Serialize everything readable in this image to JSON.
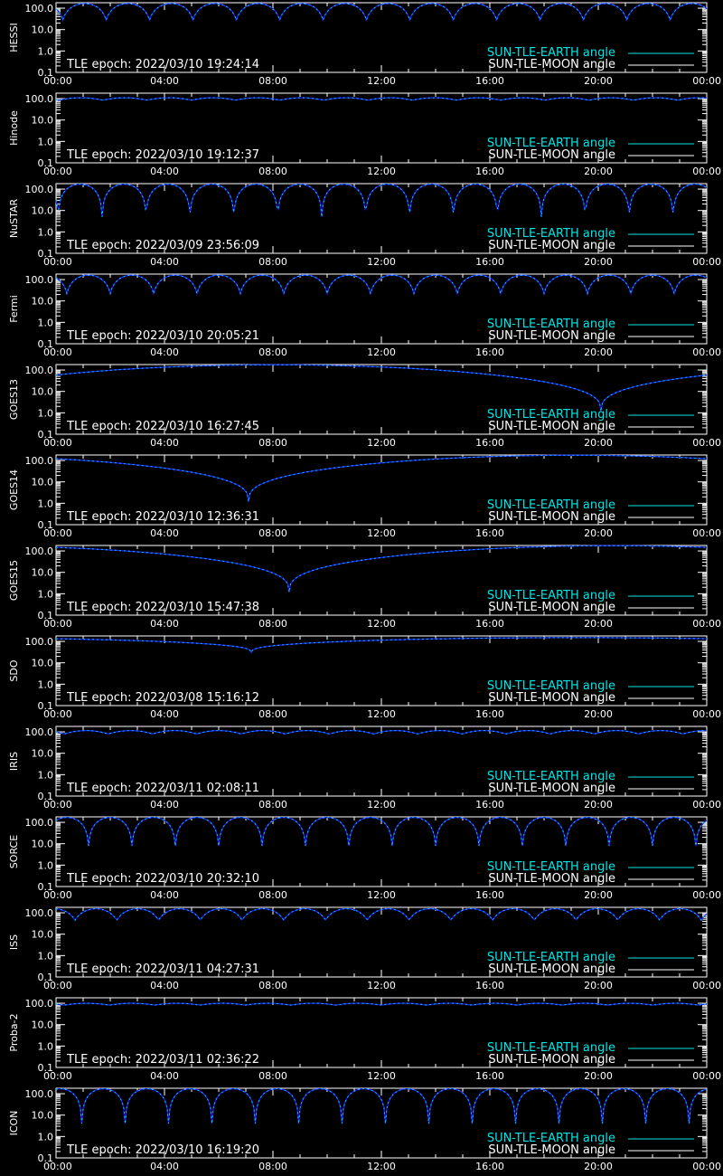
{
  "colors": {
    "background": "#000000",
    "axes": "#ffffff",
    "earth": "#00e5e5",
    "moon": "#ffffff",
    "curve_dark": "#1a1aff"
  },
  "chart_data": [
    {
      "type": "line",
      "satellite": "HESSI",
      "tle_epoch": "TLE epoch: 2022/03/10 19:24:14",
      "legend": [
        "SUN-TLE-EARTH angle",
        "SUN-TLE-MOON angle"
      ],
      "x_ticks": [
        "00:00",
        "04:00",
        "08:00",
        "12:00",
        "16:00",
        "20:00",
        "00:00"
      ],
      "y_ticks": [
        "100.0",
        "10.0",
        "1.0",
        "0.1"
      ],
      "ylim": [
        0.1,
        180
      ],
      "yscale": "log",
      "xlim_hours": [
        0,
        24
      ],
      "pattern": "periodic",
      "period_hours": 1.6,
      "phase_hours": 0.25,
      "max_deg": 165,
      "min_deg": 28
    },
    {
      "type": "line",
      "satellite": "Hinode",
      "tle_epoch": "TLE epoch: 2022/03/10 19:12:37",
      "legend": [
        "SUN-TLE-EARTH angle",
        "SUN-TLE-MOON angle"
      ],
      "x_ticks": [
        "00:00",
        "04:00",
        "08:00",
        "12:00",
        "16:00",
        "20:00",
        "00:00"
      ],
      "y_ticks": [
        "100.0",
        "10.0",
        "1.0",
        "0.1"
      ],
      "ylim": [
        0.1,
        180
      ],
      "yscale": "log",
      "xlim_hours": [
        0,
        24
      ],
      "pattern": "periodic",
      "period_hours": 1.63,
      "phase_hours": 0.1,
      "max_deg": 110,
      "min_deg": 85
    },
    {
      "type": "line",
      "satellite": "NuSTAR",
      "tle_epoch": "TLE epoch: 2022/03/09 23:56:09",
      "legend": [
        "SUN-TLE-EARTH angle",
        "SUN-TLE-MOON angle"
      ],
      "x_ticks": [
        "00:00",
        "04:00",
        "08:00",
        "12:00",
        "16:00",
        "20:00",
        "00:00"
      ],
      "y_ticks": [
        "100.0",
        "10.0",
        "1.0",
        "0.1"
      ],
      "ylim": [
        0.1,
        180
      ],
      "yscale": "log",
      "xlim_hours": [
        0,
        24
      ],
      "pattern": "periodic",
      "period_hours": 1.62,
      "phase_hours": 1.7,
      "max_deg": 170,
      "min_deg": 5
    },
    {
      "type": "line",
      "satellite": "Fermi",
      "tle_epoch": "TLE epoch: 2022/03/10 20:05:21",
      "legend": [
        "SUN-TLE-EARTH angle",
        "SUN-TLE-MOON angle"
      ],
      "x_ticks": [
        "00:00",
        "04:00",
        "08:00",
        "12:00",
        "16:00",
        "20:00",
        "00:00"
      ],
      "y_ticks": [
        "100.0",
        "10.0",
        "1.0",
        "0.1"
      ],
      "ylim": [
        0.1,
        180
      ],
      "yscale": "log",
      "xlim_hours": [
        0,
        24
      ],
      "pattern": "periodic",
      "period_hours": 1.6,
      "phase_hours": 0.4,
      "max_deg": 160,
      "min_deg": 22
    },
    {
      "type": "line",
      "satellite": "GOES13",
      "tle_epoch": "TLE epoch: 2022/03/10 16:27:45",
      "legend": [
        "SUN-TLE-EARTH angle",
        "SUN-TLE-MOON angle"
      ],
      "x_ticks": [
        "00:00",
        "04:00",
        "08:00",
        "12:00",
        "16:00",
        "20:00",
        "00:00"
      ],
      "y_ticks": [
        "100.0",
        "10.0",
        "1.0",
        "0.1"
      ],
      "ylim": [
        0.1,
        180
      ],
      "yscale": "log",
      "xlim_hours": [
        0,
        24
      ],
      "pattern": "daily",
      "dip_hours": 20.1,
      "max_deg": 175,
      "min_deg": 1.2
    },
    {
      "type": "line",
      "satellite": "GOES14",
      "tle_epoch": "TLE epoch: 2022/03/10 12:36:31",
      "legend": [
        "SUN-TLE-EARTH angle",
        "SUN-TLE-MOON angle"
      ],
      "x_ticks": [
        "00:00",
        "04:00",
        "08:00",
        "12:00",
        "16:00",
        "20:00",
        "00:00"
      ],
      "y_ticks": [
        "100.0",
        "10.0",
        "1.0",
        "0.1"
      ],
      "ylim": [
        0.1,
        180
      ],
      "yscale": "log",
      "xlim_hours": [
        0,
        24
      ],
      "pattern": "daily",
      "dip_hours": 7.1,
      "max_deg": 175,
      "min_deg": 1.2
    },
    {
      "type": "line",
      "satellite": "GOES15",
      "tle_epoch": "TLE epoch: 2022/03/10 15:47:38",
      "legend": [
        "SUN-TLE-EARTH angle",
        "SUN-TLE-MOON angle"
      ],
      "x_ticks": [
        "00:00",
        "04:00",
        "08:00",
        "12:00",
        "16:00",
        "20:00",
        "00:00"
      ],
      "y_ticks": [
        "100.0",
        "10.0",
        "1.0",
        "0.1"
      ],
      "ylim": [
        0.1,
        180
      ],
      "yscale": "log",
      "xlim_hours": [
        0,
        24
      ],
      "pattern": "daily",
      "dip_hours": 8.6,
      "max_deg": 175,
      "min_deg": 1.2
    },
    {
      "type": "line",
      "satellite": "SDO",
      "tle_epoch": "TLE epoch: 2022/03/08 15:16:12",
      "legend": [
        "SUN-TLE-EARTH angle",
        "SUN-TLE-MOON angle"
      ],
      "x_ticks": [
        "00:00",
        "04:00",
        "08:00",
        "12:00",
        "16:00",
        "20:00",
        "00:00"
      ],
      "y_ticks": [
        "100.0",
        "10.0",
        "1.0",
        "0.1"
      ],
      "ylim": [
        0.1,
        180
      ],
      "yscale": "log",
      "xlim_hours": [
        0,
        24
      ],
      "pattern": "daily",
      "dip_hours": 7.2,
      "max_deg": 150,
      "min_deg": 30
    },
    {
      "type": "line",
      "satellite": "IRIS",
      "tle_epoch": "TLE epoch: 2022/03/11 02:08:11",
      "legend": [
        "SUN-TLE-EARTH angle",
        "SUN-TLE-MOON angle"
      ],
      "x_ticks": [
        "00:00",
        "04:00",
        "08:00",
        "12:00",
        "16:00",
        "20:00",
        "00:00"
      ],
      "y_ticks": [
        "100.0",
        "10.0",
        "1.0",
        "0.1"
      ],
      "ylim": [
        0.1,
        180
      ],
      "yscale": "log",
      "xlim_hours": [
        0,
        24
      ],
      "pattern": "periodic",
      "period_hours": 1.63,
      "phase_hours": 0.3,
      "max_deg": 115,
      "min_deg": 80
    },
    {
      "type": "line",
      "satellite": "SORCE",
      "tle_epoch": "TLE epoch: 2022/03/10 20:32:10",
      "legend": [
        "SUN-TLE-EARTH angle",
        "SUN-TLE-MOON angle"
      ],
      "x_ticks": [
        "00:00",
        "04:00",
        "08:00",
        "12:00",
        "16:00",
        "20:00",
        "00:00"
      ],
      "y_ticks": [
        "100.0",
        "10.0",
        "1.0",
        "0.1"
      ],
      "ylim": [
        0.1,
        180
      ],
      "yscale": "log",
      "xlim_hours": [
        0,
        24
      ],
      "pattern": "periodic",
      "period_hours": 1.6,
      "phase_hours": 1.2,
      "max_deg": 170,
      "min_deg": 8
    },
    {
      "type": "line",
      "satellite": "ISS",
      "tle_epoch": "TLE epoch: 2022/03/11 04:27:31",
      "legend": [
        "SUN-TLE-EARTH angle",
        "SUN-TLE-MOON angle"
      ],
      "x_ticks": [
        "00:00",
        "04:00",
        "08:00",
        "12:00",
        "16:00",
        "20:00",
        "00:00"
      ],
      "y_ticks": [
        "100.0",
        "10.0",
        "1.0",
        "0.1"
      ],
      "ylim": [
        0.1,
        180
      ],
      "yscale": "log",
      "xlim_hours": [
        0,
        24
      ],
      "pattern": "periodic",
      "period_hours": 1.54,
      "phase_hours": 0.7,
      "max_deg": 155,
      "min_deg": 45
    },
    {
      "type": "line",
      "satellite": "Proba-2",
      "tle_epoch": "TLE epoch: 2022/03/11 02:36:22",
      "legend": [
        "SUN-TLE-EARTH angle",
        "SUN-TLE-MOON angle"
      ],
      "x_ticks": [
        "00:00",
        "04:00",
        "08:00",
        "12:00",
        "16:00",
        "20:00",
        "00:00"
      ],
      "y_ticks": [
        "100.0",
        "10.0",
        "1.0",
        "0.1"
      ],
      "ylim": [
        0.1,
        180
      ],
      "yscale": "log",
      "xlim_hours": [
        0,
        24
      ],
      "pattern": "periodic",
      "period_hours": 1.67,
      "phase_hours": 0.3,
      "max_deg": 100,
      "min_deg": 82
    },
    {
      "type": "line",
      "satellite": "ICON",
      "tle_epoch": "TLE epoch: 2022/03/10 16:19:20",
      "legend": [
        "SUN-TLE-EARTH angle",
        "SUN-TLE-MOON angle"
      ],
      "x_ticks": [
        "00:00",
        "04:00",
        "08:00",
        "12:00",
        "16:00",
        "20:00",
        "00:00"
      ],
      "y_ticks": [
        "100.0",
        "10.0",
        "1.0",
        "0.1"
      ],
      "ylim": [
        0.1,
        180
      ],
      "yscale": "log",
      "xlim_hours": [
        0,
        24
      ],
      "pattern": "periodic",
      "period_hours": 1.6,
      "phase_hours": 0.95,
      "max_deg": 170,
      "min_deg": 4
    }
  ]
}
